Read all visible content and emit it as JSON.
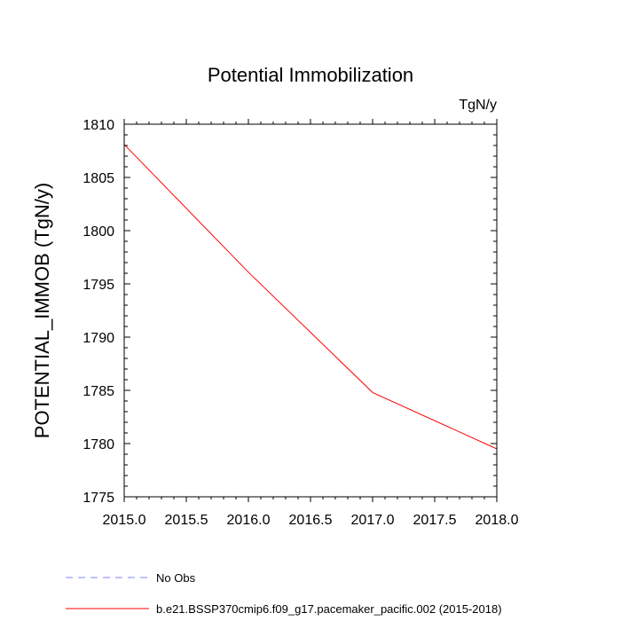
{
  "chart_data": {
    "type": "line",
    "title": "Potential Immobilization",
    "units_label": "TgN/y",
    "xlabel": "",
    "ylabel": "POTENTIAL_IMMOB  (TgN/y)",
    "xlim": [
      2015.0,
      2018.0
    ],
    "ylim": [
      1775,
      1810
    ],
    "x_ticks": [
      "2015.0",
      "2015.5",
      "2016.0",
      "2016.5",
      "2017.0",
      "2017.5",
      "2018.0"
    ],
    "y_ticks": [
      "1775",
      "1780",
      "1785",
      "1790",
      "1795",
      "1800",
      "1805",
      "1810"
    ],
    "grid": false,
    "legend_position": "bottom",
    "series": [
      {
        "name": "No Obs",
        "color": "#8080ff",
        "dash": "dashed",
        "x": [],
        "y": []
      },
      {
        "name": "b.e21.BSSP370cmip6.f09_g17.pacemaker_pacific.002 (2015-2018)",
        "color": "#ff0000",
        "dash": "solid",
        "x": [
          2015.0,
          2016.0,
          2017.0,
          2018.0
        ],
        "y": [
          1808.1,
          1796.1,
          1784.8,
          1779.5
        ]
      }
    ]
  }
}
